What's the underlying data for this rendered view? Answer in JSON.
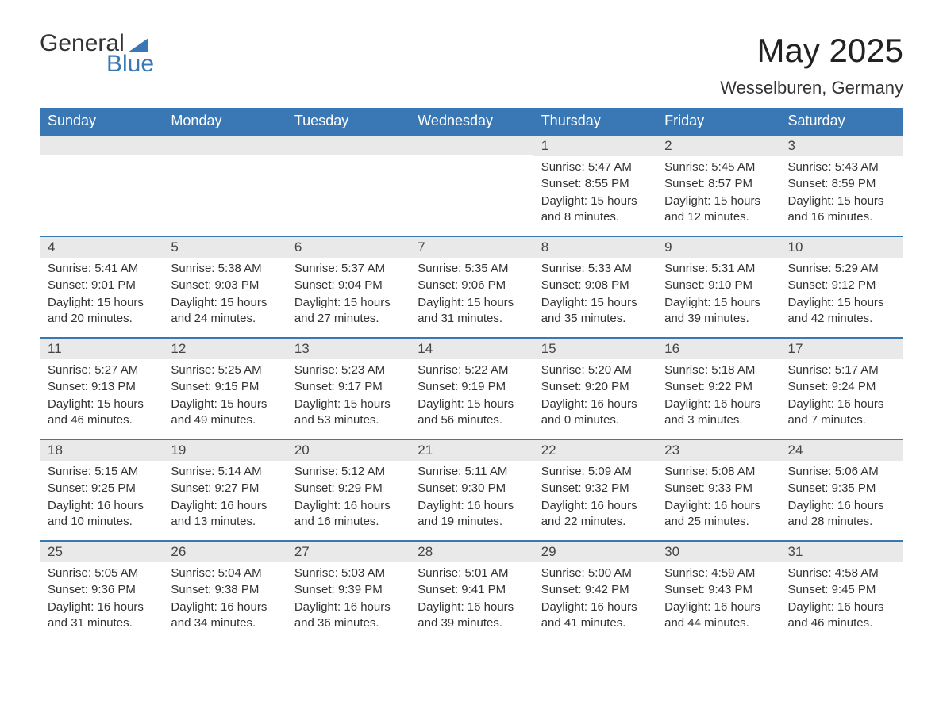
{
  "logo": {
    "word1": "General",
    "word2": "Blue"
  },
  "title": "May 2025",
  "location": "Wesselburen, Germany",
  "colors": {
    "header_bg": "#3a78b5",
    "header_fg": "#ffffff",
    "daynum_bg": "#e9e9e9",
    "rule": "#3a78b5",
    "text": "#333333",
    "background": "#ffffff"
  },
  "fonts": {
    "title_size_pt": 32,
    "location_size_pt": 17,
    "dayhead_size_pt": 14,
    "body_size_pt": 11
  },
  "day_headers": [
    "Sunday",
    "Monday",
    "Tuesday",
    "Wednesday",
    "Thursday",
    "Friday",
    "Saturday"
  ],
  "labels": {
    "sunrise": "Sunrise:",
    "sunset": "Sunset:",
    "daylight": "Daylight:"
  },
  "start_weekday_index": 4,
  "days": [
    {
      "n": 1,
      "sunrise": "5:47 AM",
      "sunset": "8:55 PM",
      "daylight": "15 hours and 8 minutes."
    },
    {
      "n": 2,
      "sunrise": "5:45 AM",
      "sunset": "8:57 PM",
      "daylight": "15 hours and 12 minutes."
    },
    {
      "n": 3,
      "sunrise": "5:43 AM",
      "sunset": "8:59 PM",
      "daylight": "15 hours and 16 minutes."
    },
    {
      "n": 4,
      "sunrise": "5:41 AM",
      "sunset": "9:01 PM",
      "daylight": "15 hours and 20 minutes."
    },
    {
      "n": 5,
      "sunrise": "5:38 AM",
      "sunset": "9:03 PM",
      "daylight": "15 hours and 24 minutes."
    },
    {
      "n": 6,
      "sunrise": "5:37 AM",
      "sunset": "9:04 PM",
      "daylight": "15 hours and 27 minutes."
    },
    {
      "n": 7,
      "sunrise": "5:35 AM",
      "sunset": "9:06 PM",
      "daylight": "15 hours and 31 minutes."
    },
    {
      "n": 8,
      "sunrise": "5:33 AM",
      "sunset": "9:08 PM",
      "daylight": "15 hours and 35 minutes."
    },
    {
      "n": 9,
      "sunrise": "5:31 AM",
      "sunset": "9:10 PM",
      "daylight": "15 hours and 39 minutes."
    },
    {
      "n": 10,
      "sunrise": "5:29 AM",
      "sunset": "9:12 PM",
      "daylight": "15 hours and 42 minutes."
    },
    {
      "n": 11,
      "sunrise": "5:27 AM",
      "sunset": "9:13 PM",
      "daylight": "15 hours and 46 minutes."
    },
    {
      "n": 12,
      "sunrise": "5:25 AM",
      "sunset": "9:15 PM",
      "daylight": "15 hours and 49 minutes."
    },
    {
      "n": 13,
      "sunrise": "5:23 AM",
      "sunset": "9:17 PM",
      "daylight": "15 hours and 53 minutes."
    },
    {
      "n": 14,
      "sunrise": "5:22 AM",
      "sunset": "9:19 PM",
      "daylight": "15 hours and 56 minutes."
    },
    {
      "n": 15,
      "sunrise": "5:20 AM",
      "sunset": "9:20 PM",
      "daylight": "16 hours and 0 minutes."
    },
    {
      "n": 16,
      "sunrise": "5:18 AM",
      "sunset": "9:22 PM",
      "daylight": "16 hours and 3 minutes."
    },
    {
      "n": 17,
      "sunrise": "5:17 AM",
      "sunset": "9:24 PM",
      "daylight": "16 hours and 7 minutes."
    },
    {
      "n": 18,
      "sunrise": "5:15 AM",
      "sunset": "9:25 PM",
      "daylight": "16 hours and 10 minutes."
    },
    {
      "n": 19,
      "sunrise": "5:14 AM",
      "sunset": "9:27 PM",
      "daylight": "16 hours and 13 minutes."
    },
    {
      "n": 20,
      "sunrise": "5:12 AM",
      "sunset": "9:29 PM",
      "daylight": "16 hours and 16 minutes."
    },
    {
      "n": 21,
      "sunrise": "5:11 AM",
      "sunset": "9:30 PM",
      "daylight": "16 hours and 19 minutes."
    },
    {
      "n": 22,
      "sunrise": "5:09 AM",
      "sunset": "9:32 PM",
      "daylight": "16 hours and 22 minutes."
    },
    {
      "n": 23,
      "sunrise": "5:08 AM",
      "sunset": "9:33 PM",
      "daylight": "16 hours and 25 minutes."
    },
    {
      "n": 24,
      "sunrise": "5:06 AM",
      "sunset": "9:35 PM",
      "daylight": "16 hours and 28 minutes."
    },
    {
      "n": 25,
      "sunrise": "5:05 AM",
      "sunset": "9:36 PM",
      "daylight": "16 hours and 31 minutes."
    },
    {
      "n": 26,
      "sunrise": "5:04 AM",
      "sunset": "9:38 PM",
      "daylight": "16 hours and 34 minutes."
    },
    {
      "n": 27,
      "sunrise": "5:03 AM",
      "sunset": "9:39 PM",
      "daylight": "16 hours and 36 minutes."
    },
    {
      "n": 28,
      "sunrise": "5:01 AM",
      "sunset": "9:41 PM",
      "daylight": "16 hours and 39 minutes."
    },
    {
      "n": 29,
      "sunrise": "5:00 AM",
      "sunset": "9:42 PM",
      "daylight": "16 hours and 41 minutes."
    },
    {
      "n": 30,
      "sunrise": "4:59 AM",
      "sunset": "9:43 PM",
      "daylight": "16 hours and 44 minutes."
    },
    {
      "n": 31,
      "sunrise": "4:58 AM",
      "sunset": "9:45 PM",
      "daylight": "16 hours and 46 minutes."
    }
  ]
}
